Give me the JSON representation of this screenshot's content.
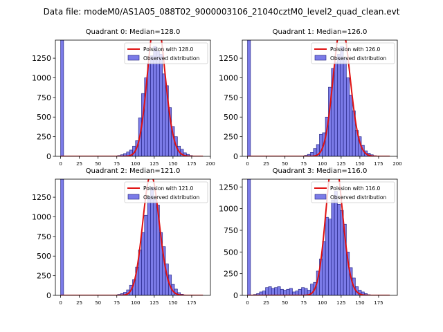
{
  "page_title": "Data file: modeM0/AS1A05_088T02_9000003106_21040cztM0_level2_quad_clean.evt",
  "colors": {
    "hist_fill": "#7b7be8",
    "hist_edge": "#1a1a7a",
    "poisson": "#e01010"
  },
  "chart_data": [
    {
      "type": "bar",
      "title": "Quadrant 0: Median=128.0",
      "median": 128.0,
      "legend": {
        "poisson": "Poission with 128.0",
        "observed": "Observed distribution",
        "placement": "upper-right"
      },
      "xlim": [
        -7,
        200
      ],
      "ylim": [
        0,
        1480
      ],
      "xticks": [
        0,
        25,
        50,
        75,
        100,
        125,
        150,
        175,
        200
      ],
      "yticks": [
        0,
        250,
        500,
        750,
        1000,
        1250
      ],
      "bin_width": 4,
      "bins": [
        [
          0,
          1480
        ],
        [
          72,
          4
        ],
        [
          76,
          10
        ],
        [
          80,
          20
        ],
        [
          84,
          35
        ],
        [
          88,
          55
        ],
        [
          92,
          80
        ],
        [
          96,
          130
        ],
        [
          100,
          200
        ],
        [
          104,
          490
        ],
        [
          108,
          800
        ],
        [
          112,
          1000
        ],
        [
          116,
          1180
        ],
        [
          120,
          1280
        ],
        [
          124,
          1400
        ],
        [
          128,
          1340
        ],
        [
          132,
          1300
        ],
        [
          136,
          1050
        ],
        [
          140,
          900
        ],
        [
          144,
          620
        ],
        [
          148,
          380
        ],
        [
          152,
          250
        ],
        [
          156,
          130
        ],
        [
          160,
          90
        ],
        [
          164,
          45
        ],
        [
          168,
          25
        ],
        [
          172,
          10
        ],
        [
          176,
          4
        ]
      ],
      "curve_x_range": [
        0,
        190
      ]
    },
    {
      "type": "bar",
      "title": "Quadrant 1: Median=126.0",
      "median": 126.0,
      "legend": {
        "poisson": "Poission with 126.0",
        "observed": "Observed distribution",
        "placement": "upper-right"
      },
      "xlim": [
        -7,
        200
      ],
      "ylim": [
        0,
        1480
      ],
      "xticks": [
        0,
        25,
        50,
        75,
        100,
        125,
        150,
        175,
        200
      ],
      "yticks": [
        0,
        250,
        500,
        750,
        1000,
        1250
      ],
      "bin_width": 4,
      "bins": [
        [
          0,
          1480
        ],
        [
          72,
          5
        ],
        [
          76,
          12
        ],
        [
          80,
          25
        ],
        [
          84,
          50
        ],
        [
          88,
          100
        ],
        [
          92,
          150
        ],
        [
          96,
          280
        ],
        [
          100,
          300
        ],
        [
          104,
          500
        ],
        [
          108,
          880
        ],
        [
          112,
          1120
        ],
        [
          116,
          1200
        ],
        [
          120,
          1300
        ],
        [
          124,
          1400
        ],
        [
          128,
          1250
        ],
        [
          132,
          1000
        ],
        [
          136,
          780
        ],
        [
          140,
          580
        ],
        [
          144,
          330
        ],
        [
          148,
          250
        ],
        [
          152,
          140
        ],
        [
          156,
          70
        ],
        [
          160,
          40
        ],
        [
          164,
          20
        ],
        [
          168,
          8
        ],
        [
          172,
          3
        ]
      ],
      "curve_x_range": [
        0,
        190
      ]
    },
    {
      "type": "bar",
      "title": "Quadrant 2: Median=121.0",
      "median": 121.0,
      "legend": {
        "poisson": "Poission with 121.0",
        "observed": "Observed distribution",
        "placement": "upper-right"
      },
      "xlim": [
        -7,
        200
      ],
      "ylim": [
        0,
        1480
      ],
      "xticks": [
        0,
        25,
        50,
        75,
        100,
        125,
        150,
        175
      ],
      "yticks": [
        0,
        250,
        500,
        750,
        1000,
        1250
      ],
      "bin_width": 4,
      "bins": [
        [
          0,
          1480
        ],
        [
          72,
          5
        ],
        [
          76,
          12
        ],
        [
          80,
          22
        ],
        [
          84,
          40
        ],
        [
          88,
          70
        ],
        [
          92,
          130
        ],
        [
          96,
          200
        ],
        [
          100,
          360
        ],
        [
          104,
          580
        ],
        [
          108,
          800
        ],
        [
          112,
          1020
        ],
        [
          116,
          1250
        ],
        [
          120,
          1380
        ],
        [
          124,
          1220
        ],
        [
          128,
          1150
        ],
        [
          132,
          800
        ],
        [
          136,
          620
        ],
        [
          140,
          400
        ],
        [
          144,
          260
        ],
        [
          148,
          140
        ],
        [
          152,
          80
        ],
        [
          156,
          35
        ],
        [
          160,
          15
        ],
        [
          164,
          5
        ]
      ],
      "curve_x_range": [
        0,
        190
      ]
    },
    {
      "type": "bar",
      "title": "Quadrant 3: Median=116.0",
      "median": 116.0,
      "legend": {
        "poisson": "Poission with 116.0",
        "observed": "Observed distribution",
        "placement": "upper-right"
      },
      "xlim": [
        -7,
        200
      ],
      "ylim": [
        0,
        1340
      ],
      "xticks": [
        0,
        25,
        50,
        75,
        100,
        125,
        150,
        175
      ],
      "yticks": [
        0,
        250,
        500,
        750,
        1000,
        1250
      ],
      "bin_width": 4,
      "bins": [
        [
          0,
          1340
        ],
        [
          8,
          10
        ],
        [
          12,
          20
        ],
        [
          16,
          40
        ],
        [
          20,
          50
        ],
        [
          24,
          90
        ],
        [
          28,
          100
        ],
        [
          32,
          80
        ],
        [
          36,
          90
        ],
        [
          40,
          100
        ],
        [
          44,
          70
        ],
        [
          48,
          60
        ],
        [
          52,
          70
        ],
        [
          56,
          80
        ],
        [
          60,
          40
        ],
        [
          64,
          50
        ],
        [
          68,
          70
        ],
        [
          72,
          90
        ],
        [
          76,
          80
        ],
        [
          80,
          60
        ],
        [
          84,
          130
        ],
        [
          88,
          150
        ],
        [
          92,
          280
        ],
        [
          96,
          420
        ],
        [
          100,
          620
        ],
        [
          104,
          900
        ],
        [
          108,
          880
        ],
        [
          112,
          1100
        ],
        [
          116,
          1200
        ],
        [
          120,
          1050
        ],
        [
          124,
          980
        ],
        [
          128,
          820
        ],
        [
          132,
          500
        ],
        [
          136,
          320
        ],
        [
          140,
          200
        ],
        [
          144,
          100
        ],
        [
          148,
          60
        ],
        [
          152,
          40
        ],
        [
          156,
          20
        ],
        [
          160,
          8
        ],
        [
          164,
          3
        ]
      ],
      "curve_x_range": [
        0,
        190
      ]
    }
  ]
}
